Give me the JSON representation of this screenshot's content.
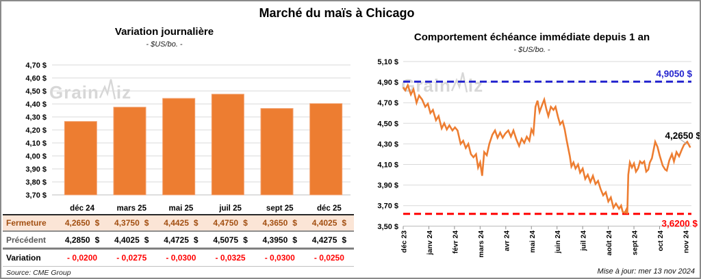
{
  "title": "Marché du maïs à Chicago",
  "watermark": {
    "prefix": "Grain",
    "suffix": "iz"
  },
  "source": "Source: CME Group",
  "updated": "Mise à jour: mer 13 nov 2024",
  "table": {
    "columns": [
      "déc 24",
      "mars 25",
      "mai 25",
      "juil 25",
      "sept 25",
      "déc 25"
    ],
    "rows": [
      {
        "label": "Fermeture",
        "unit": "$",
        "values": [
          "4,2650",
          "4,3750",
          "4,4425",
          "4,4750",
          "4,3650",
          "4,4025"
        ]
      },
      {
        "label": "Précédent",
        "unit": "$",
        "values": [
          "4,2850",
          "4,4025",
          "4,4725",
          "4,5075",
          "4,3950",
          "4,4275"
        ]
      },
      {
        "label": "Variation",
        "unit": "",
        "values": [
          "- 0,0200",
          "- 0,0275",
          "- 0,0300",
          "- 0,0325",
          "- 0,0300",
          "- 0,0250"
        ]
      }
    ]
  },
  "chart_data": [
    {
      "type": "bar",
      "title": "Variation journalière",
      "subtitle": "- $US/bo. -",
      "categories": [
        "déc 24",
        "mars 25",
        "mai 25",
        "juil 25",
        "sept 25",
        "déc 25"
      ],
      "values": [
        4.265,
        4.375,
        4.4425,
        4.475,
        4.365,
        4.4025
      ],
      "ylim": [
        3.7,
        4.7
      ],
      "ytick_step": 0.1,
      "ytick_suffix": " $",
      "bar_color": "#ED7D31",
      "grid": true
    },
    {
      "type": "line",
      "title": "Comportement échéance immédiate depuis 1 an",
      "subtitle": "- $US/bo. -",
      "x_labels": [
        "déc 23",
        "janv 24",
        "févr 24",
        "mars 24",
        "avr 24",
        "mai 24",
        "juin 24",
        "juil 24",
        "août 24",
        "sept 24",
        "oct 24",
        "nov 24"
      ],
      "ylim": [
        3.5,
        5.1
      ],
      "ytick_step": 0.2,
      "line_color": "#ED7D31",
      "last_value": 4.265,
      "last_label": "4,2650 $",
      "reference_lines": [
        {
          "value": 4.905,
          "label": "4,9050 $",
          "color": "#2424CE",
          "label_side": "above"
        },
        {
          "value": 3.62,
          "label": "3,6200 $",
          "color": "#FF0000",
          "label_side": "below"
        }
      ],
      "points": [
        [
          0.0,
          4.85
        ],
        [
          0.08,
          4.82
        ],
        [
          0.18,
          4.87
        ],
        [
          0.3,
          4.78
        ],
        [
          0.4,
          4.83
        ],
        [
          0.52,
          4.7
        ],
        [
          0.62,
          4.77
        ],
        [
          0.74,
          4.73
        ],
        [
          0.86,
          4.66
        ],
        [
          0.96,
          4.69
        ],
        [
          1.06,
          4.6
        ],
        [
          1.16,
          4.63
        ],
        [
          1.28,
          4.53
        ],
        [
          1.38,
          4.57
        ],
        [
          1.5,
          4.45
        ],
        [
          1.6,
          4.5
        ],
        [
          1.7,
          4.44
        ],
        [
          1.8,
          4.48
        ],
        [
          1.92,
          4.43
        ],
        [
          2.02,
          4.46
        ],
        [
          2.12,
          4.43
        ],
        [
          2.24,
          4.3
        ],
        [
          2.34,
          4.33
        ],
        [
          2.44,
          4.26
        ],
        [
          2.54,
          4.3
        ],
        [
          2.64,
          4.2
        ],
        [
          2.74,
          4.17
        ],
        [
          2.84,
          4.2
        ],
        [
          2.92,
          4.07
        ],
        [
          3.0,
          4.12
        ],
        [
          3.08,
          3.99
        ],
        [
          3.16,
          4.22
        ],
        [
          3.26,
          4.19
        ],
        [
          3.36,
          4.3
        ],
        [
          3.48,
          4.39
        ],
        [
          3.58,
          4.43
        ],
        [
          3.68,
          4.36
        ],
        [
          3.78,
          4.41
        ],
        [
          3.88,
          4.36
        ],
        [
          3.98,
          4.4
        ],
        [
          4.1,
          4.43
        ],
        [
          4.2,
          4.37
        ],
        [
          4.3,
          4.43
        ],
        [
          4.42,
          4.34
        ],
        [
          4.52,
          4.28
        ],
        [
          4.62,
          4.35
        ],
        [
          4.72,
          4.31
        ],
        [
          4.82,
          4.37
        ],
        [
          4.92,
          4.33
        ],
        [
          5.0,
          4.44
        ],
        [
          5.08,
          4.4
        ],
        [
          5.16,
          4.66
        ],
        [
          5.24,
          4.72
        ],
        [
          5.32,
          4.61
        ],
        [
          5.42,
          4.68
        ],
        [
          5.5,
          4.73
        ],
        [
          5.58,
          4.64
        ],
        [
          5.66,
          4.57
        ],
        [
          5.76,
          4.66
        ],
        [
          5.86,
          4.63
        ],
        [
          5.94,
          4.66
        ],
        [
          6.04,
          4.56
        ],
        [
          6.12,
          4.49
        ],
        [
          6.22,
          4.52
        ],
        [
          6.3,
          4.44
        ],
        [
          6.38,
          4.33
        ],
        [
          6.5,
          4.18
        ],
        [
          6.56,
          4.08
        ],
        [
          6.64,
          4.12
        ],
        [
          6.72,
          4.06
        ],
        [
          6.82,
          4.1
        ],
        [
          6.9,
          4.02
        ],
        [
          7.0,
          4.06
        ],
        [
          7.1,
          3.96
        ],
        [
          7.2,
          4.0
        ],
        [
          7.3,
          3.93
        ],
        [
          7.4,
          3.99
        ],
        [
          7.5,
          3.91
        ],
        [
          7.6,
          3.94
        ],
        [
          7.7,
          3.86
        ],
        [
          7.8,
          3.8
        ],
        [
          7.9,
          3.83
        ],
        [
          8.0,
          3.74
        ],
        [
          8.1,
          3.78
        ],
        [
          8.2,
          3.68
        ],
        [
          8.3,
          3.72
        ],
        [
          8.42,
          3.67
        ],
        [
          8.5,
          3.7
        ],
        [
          8.56,
          3.64
        ],
        [
          8.64,
          3.63
        ],
        [
          8.7,
          3.66
        ],
        [
          8.74,
          3.62
        ],
        [
          8.78,
          4.0
        ],
        [
          8.84,
          4.12
        ],
        [
          8.92,
          4.07
        ],
        [
          9.0,
          4.11
        ],
        [
          9.08,
          4.03
        ],
        [
          9.16,
          4.06
        ],
        [
          9.24,
          4.13
        ],
        [
          9.32,
          4.11
        ],
        [
          9.4,
          4.13
        ],
        [
          9.48,
          4.03
        ],
        [
          9.56,
          4.05
        ],
        [
          9.62,
          4.12
        ],
        [
          9.7,
          4.16
        ],
        [
          9.83,
          4.32
        ],
        [
          9.92,
          4.27
        ],
        [
          10.0,
          4.19
        ],
        [
          10.12,
          4.09
        ],
        [
          10.22,
          4.05
        ],
        [
          10.28,
          4.04
        ],
        [
          10.38,
          4.14
        ],
        [
          10.48,
          4.2
        ],
        [
          10.56,
          4.13
        ],
        [
          10.66,
          4.22
        ],
        [
          10.76,
          4.18
        ],
        [
          10.86,
          4.24
        ],
        [
          10.95,
          4.29
        ],
        [
          11.08,
          4.32
        ],
        [
          11.2,
          4.265
        ]
      ]
    }
  ]
}
